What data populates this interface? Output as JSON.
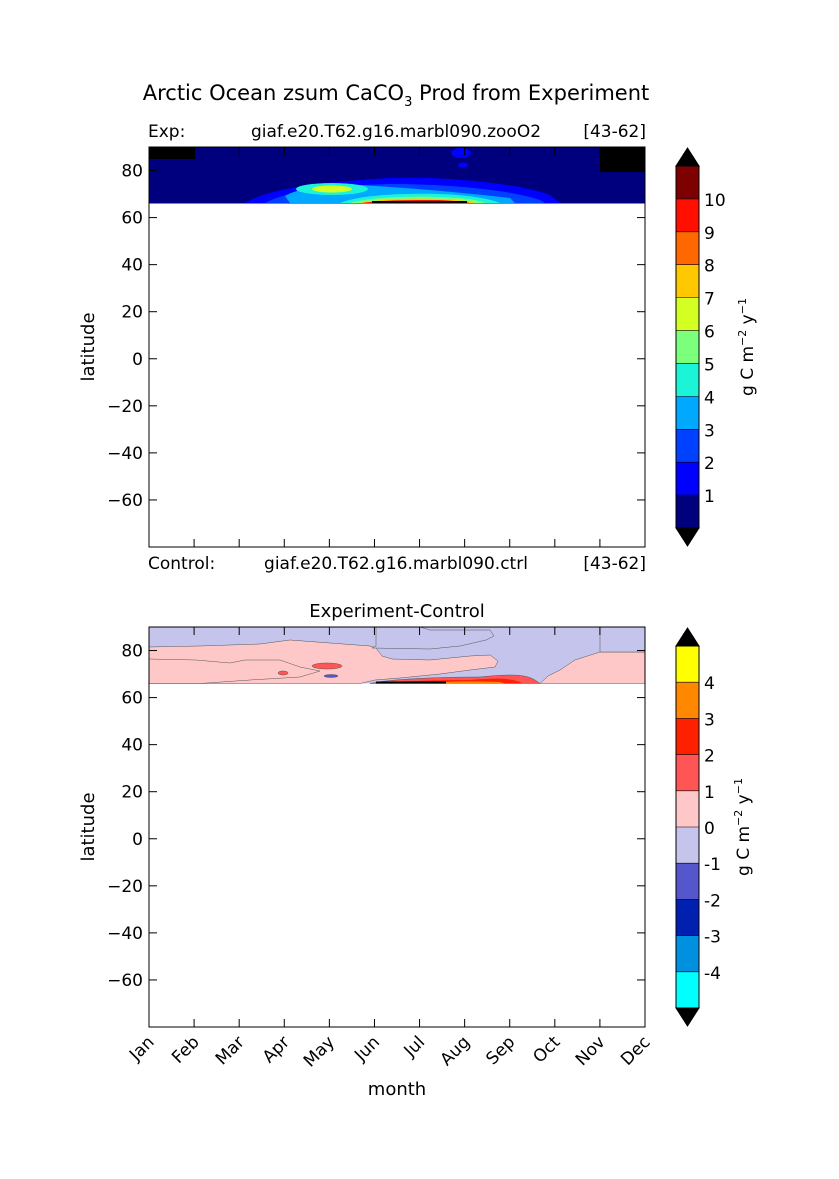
{
  "figure": {
    "title_main": "Arctic Ocean zsum CaCO",
    "title_sub": "3",
    "title_rest": " Prod from Experiment"
  },
  "chart_data": [
    {
      "type": "heatmap",
      "panel": "experiment",
      "left_label": "Exp:",
      "case_name": "giaf.e20.T62.g16.marbl090.zooO2",
      "years": "[43-62]",
      "bottom_left_label": "Control:",
      "bottom_case_name": "giaf.e20.T62.g16.marbl090.ctrl",
      "bottom_years": "[43-62]",
      "xlabel": "",
      "ylabel": "latitude",
      "xlim": [
        0,
        11
      ],
      "ylim": [
        -80,
        90
      ],
      "yticks": [
        80,
        60,
        40,
        20,
        0,
        -20,
        -40,
        -60
      ],
      "ytick_labels": [
        "80",
        "60",
        "40",
        "20",
        "0",
        "−20",
        "−40",
        "−60"
      ],
      "data_lat_range": [
        66,
        90
      ],
      "colorbar": {
        "labels": [
          "1",
          "2",
          "3",
          "4",
          "5",
          "6",
          "7",
          "8",
          "9",
          "10"
        ],
        "levels": [
          0,
          1,
          2,
          3,
          4,
          5,
          6,
          7,
          8,
          9,
          10,
          11
        ],
        "colors": [
          "#00007f",
          "#0000ff",
          "#0040ff",
          "#00a8ff",
          "#1cf4d8",
          "#7cff7a",
          "#d4ff23",
          "#ffc800",
          "#ff6800",
          "#ff0f00",
          "#7f0000"
        ],
        "over_color": "#000000",
        "under_color": "#000000",
        "unit_main": "g C m",
        "unit_exp1": "−2",
        "unit_mid": " y",
        "unit_exp2": "−1"
      },
      "features": [
        {
          "lat": 72,
          "month": 5.7,
          "value": 3
        },
        {
          "lat": 71,
          "month": 4.3,
          "value": 5
        },
        {
          "lat": 68,
          "month": 6.4,
          "value": 7
        },
        {
          "lat": 67,
          "month": 6.5,
          "value": 10
        }
      ]
    },
    {
      "type": "heatmap",
      "panel": "difference",
      "title": "Experiment-Control",
      "xlabel": "month",
      "ylabel": "latitude",
      "xlim": [
        0,
        11
      ],
      "ylim": [
        -80,
        90
      ],
      "categories": [
        "Jan",
        "Feb",
        "Mar",
        "Apr",
        "May",
        "Jun",
        "Jul",
        "Aug",
        "Sep",
        "Oct",
        "Nov",
        "Dec"
      ],
      "yticks": [
        80,
        60,
        40,
        20,
        0,
        -20,
        -40,
        -60
      ],
      "ytick_labels": [
        "80",
        "60",
        "40",
        "20",
        "0",
        "−20",
        "−40",
        "−60"
      ],
      "data_lat_range": [
        66,
        90
      ],
      "colorbar": {
        "labels": [
          "-4",
          "-3",
          "-2",
          "-1",
          "0",
          "1",
          "2",
          "3",
          "4"
        ],
        "levels": [
          -5,
          -4,
          -3,
          -2,
          -1,
          0,
          1,
          2,
          3,
          4,
          5
        ],
        "colors": [
          "#00ffff",
          "#0090e0",
          "#0020b0",
          "#5555cc",
          "#c4c4ec",
          "#ffc8c8",
          "#ff5555",
          "#ff2000",
          "#ff8800",
          "#ffff00"
        ],
        "over_color": "#000000",
        "under_color": "#000000",
        "unit_main": "g C m",
        "unit_exp1": "−2",
        "unit_mid": " y",
        "unit_exp2": "−1"
      }
    }
  ]
}
